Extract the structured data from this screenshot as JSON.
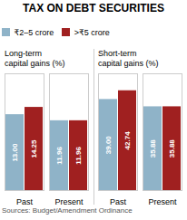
{
  "title": "TAX ON DEBT SECURITIES",
  "annotations": [
    "Sources: Budget/Amendment Ordinance"
  ],
  "legend": "upper left",
  "chart_data": [
    {
      "type": "bar",
      "subtitle": "Long-term\ncapital gains (%)",
      "categories": [
        "Past",
        "Present"
      ],
      "series": [
        {
          "name": "₹2–5 crore",
          "color": "#8fb3c8",
          "values": [
            13.0,
            11.96
          ],
          "value_labels": [
            "13.00",
            "11.96"
          ]
        },
        {
          "name": ">₹5 crore",
          "color": "#a02020",
          "values": [
            14.25,
            11.96
          ],
          "value_labels": [
            "14.25",
            "11.96"
          ]
        }
      ],
      "ylim": [
        0,
        20
      ],
      "data_labels": true,
      "tick_labels": "x"
    },
    {
      "type": "bar",
      "subtitle": "Short-term\ncapital gains (%)",
      "categories": [
        "Past",
        "Present"
      ],
      "series": [
        {
          "name": "₹2–5 crore",
          "color": "#8fb3c8",
          "values": [
            39.0,
            35.88
          ],
          "value_labels": [
            "39.00",
            "35.88"
          ]
        },
        {
          "name": ">₹5 crore",
          "color": "#a02020",
          "values": [
            42.74,
            35.88
          ],
          "value_labels": [
            "42.74",
            "35.88"
          ]
        }
      ],
      "ylim": [
        0,
        50
      ],
      "data_labels": true,
      "tick_labels": "x"
    }
  ]
}
